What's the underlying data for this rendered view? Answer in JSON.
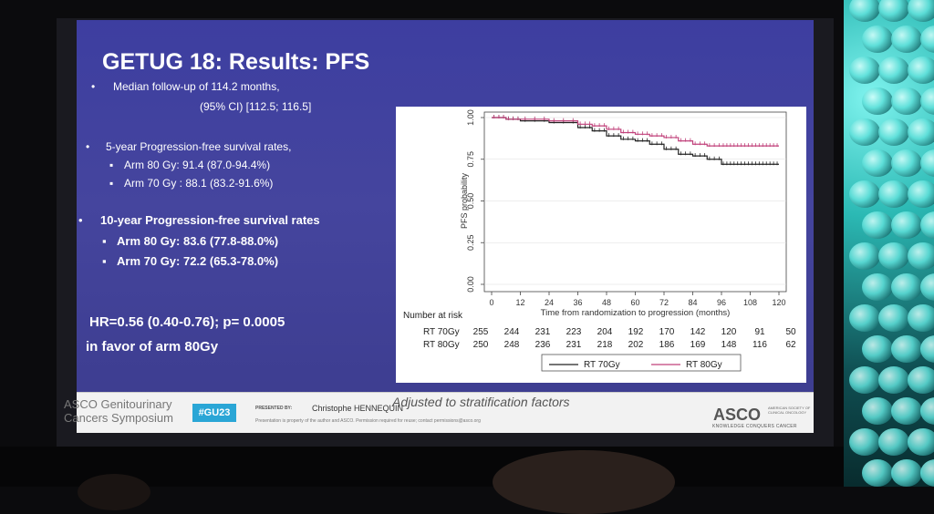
{
  "slide": {
    "title": "GETUG 18: Results: PFS",
    "bullets": {
      "followup_line1": "Median follow-up of 114.2 months,",
      "followup_line2": "(95% CI) [112.5; 116.5]",
      "five_year_heading": "5-year Progression-free survival rates,",
      "five_year_arm80": "Arm 80 Gy: 91.4 (87.0-94.4%)",
      "five_year_arm70": "Arm 70 Gy : 88.1 (83.2-91.6%)",
      "ten_year_heading": "10-year Progression-free survival rates",
      "ten_year_arm80": "Arm 80 Gy: 83.6 (77.8-88.0%)",
      "ten_year_arm70": "Arm 70 Gy: 72.2 (65.3-78.0%)",
      "hr_line1": "HR=0.56 (0.40-0.76);  p= 0.0005",
      "hr_line2": "in favor of arm 80Gy"
    },
    "bullet_symbol": "•",
    "sub_bullet_symbol": "▪",
    "adjusted_note": "Adjusted to stratification factors"
  },
  "footer": {
    "asco_line1": "ASCO Genitourinary",
    "asco_line2": "Cancers Symposium",
    "hashtag": "#GU23",
    "presented_by": "PRESENTED BY:",
    "presenter": "Christophe HENNEQUIN",
    "disclaimer": "Presentation is property of the author and ASCO. Permission required for reuse; contact permissions@asco.org",
    "logo": "ASCO",
    "logo_sub": "AMERICAN SOCIETY OF CLINICAL ONCOLOGY",
    "tagline": "KNOWLEDGE CONQUERS CANCER"
  },
  "colors": {
    "slide_bg": "#4040a0",
    "rt70": "#222222",
    "rt80": "#c0407a",
    "hashtag_bg": "#2aa6d6"
  },
  "chart_data": {
    "type": "line",
    "xlabel": "Time from randomization to  progression (months)",
    "ylabel": "PFS probability",
    "xlim": [
      0,
      120
    ],
    "ylim": [
      0,
      1
    ],
    "xticks": [
      0,
      12,
      24,
      36,
      48,
      60,
      72,
      84,
      96,
      108,
      120
    ],
    "yticks": [
      "0.00",
      "0.25",
      "0.50",
      "0.75",
      "1.00"
    ],
    "series": [
      {
        "name": "RT 70Gy",
        "x": [
          0,
          6,
          12,
          24,
          36,
          42,
          48,
          54,
          60,
          66,
          72,
          78,
          84,
          90,
          96,
          108,
          120
        ],
        "y": [
          1.0,
          0.99,
          0.98,
          0.97,
          0.94,
          0.92,
          0.89,
          0.87,
          0.86,
          0.84,
          0.81,
          0.78,
          0.77,
          0.75,
          0.72,
          0.72,
          0.72
        ]
      },
      {
        "name": "RT 80Gy",
        "x": [
          0,
          6,
          12,
          24,
          36,
          42,
          48,
          54,
          60,
          66,
          72,
          78,
          84,
          90,
          96,
          108,
          120
        ],
        "y": [
          1.0,
          0.99,
          0.99,
          0.98,
          0.96,
          0.95,
          0.93,
          0.91,
          0.9,
          0.89,
          0.88,
          0.86,
          0.84,
          0.83,
          0.83,
          0.83,
          0.83
        ]
      }
    ],
    "risk_table": {
      "heading": "Number at risk",
      "rows": [
        {
          "label": "RT 70Gy",
          "values": [
            "255",
            "244",
            "231",
            "223",
            "204",
            "192",
            "170",
            "142",
            "120",
            "91",
            "50"
          ]
        },
        {
          "label": "RT 80Gy",
          "values": [
            "250",
            "248",
            "236",
            "231",
            "218",
            "202",
            "186",
            "169",
            "148",
            "116",
            "62"
          ]
        }
      ]
    },
    "legend": [
      "RT 70Gy",
      "RT 80Gy"
    ],
    "grid": true
  }
}
